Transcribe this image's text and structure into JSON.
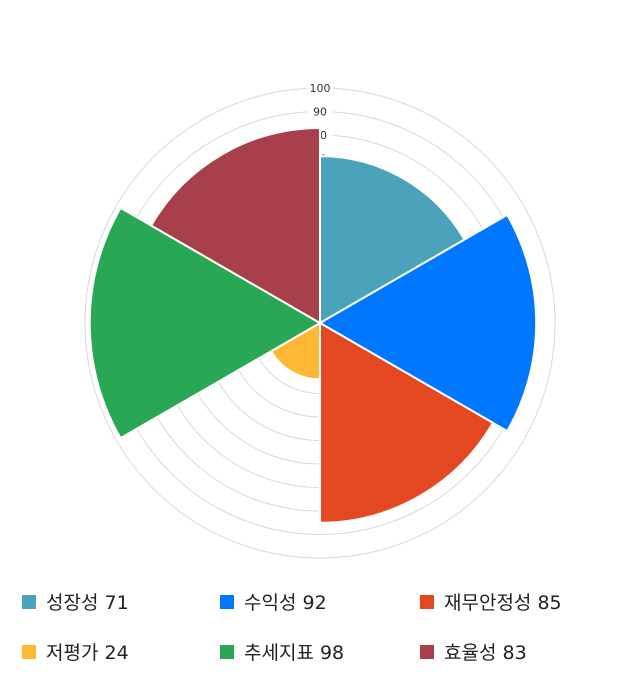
{
  "chart_data": {
    "type": "polar-area",
    "categories": [
      "성장성",
      "수익성",
      "재무안정성",
      "저평가",
      "추세지표",
      "효율성"
    ],
    "values": [
      71,
      92,
      85,
      24,
      98,
      83
    ],
    "colors": [
      "#4aa3bb",
      "#0077ff",
      "#e34823",
      "#ffb833",
      "#2aa755",
      "#a8404c"
    ],
    "rlim": [
      0,
      100
    ],
    "ticks": [
      10,
      20,
      30,
      40,
      50,
      60,
      70,
      80,
      90,
      100
    ],
    "grid": true,
    "legend": "bottom",
    "legend_labels": [
      "성장성 71",
      "수익성 92",
      "재무안정성 85",
      "저평가 24",
      "추세지표 98",
      "효율성 83"
    ]
  }
}
